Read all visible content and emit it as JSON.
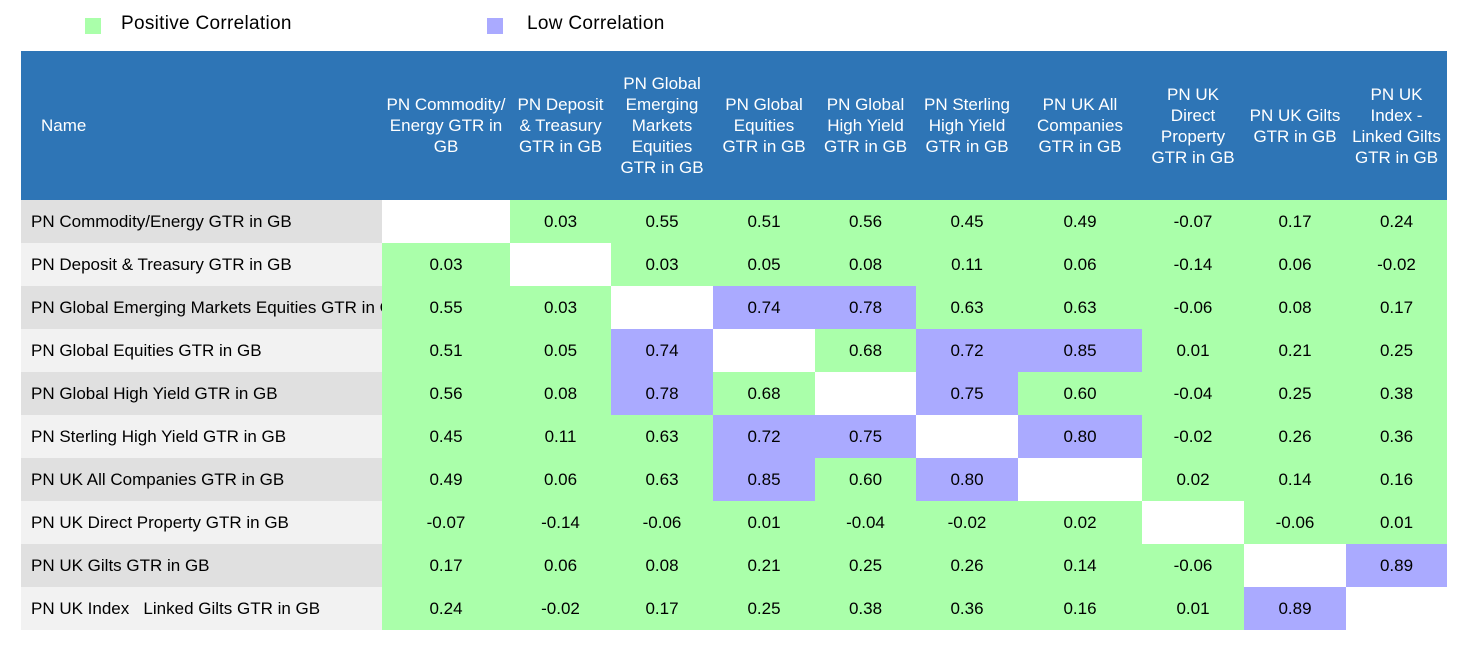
{
  "legend": [
    {
      "label": "Positive Correlation",
      "color": "#aaffaa"
    },
    {
      "label": "Low Correlation",
      "color": "#aaaaff"
    }
  ],
  "table": {
    "header_color": "#2e75b6",
    "headers": [
      "Name",
      "PN Commodity/ Energy GTR in GB",
      "PN Deposit & Treasury GTR in GB",
      "PN Global Emerging Markets Equities GTR in GB",
      "PN Global Equities GTR in GB",
      "PN Global High Yield GTR in GB",
      "PN Sterling High Yield GTR in GB",
      "PN UK All Companies GTR in GB",
      "PN UK Direct Property GTR in GB",
      "PN UK Gilts GTR in GB",
      "PN UK Index - Linked Gilts GTR in GB"
    ],
    "rows": [
      {
        "name": "PN Commodity/Energy GTR in GB",
        "cells": [
          null,
          {
            "value": "0.03",
            "color": "#aaffaa"
          },
          {
            "value": "0.55",
            "color": "#aaffaa"
          },
          {
            "value": "0.51",
            "color": "#aaffaa"
          },
          {
            "value": "0.56",
            "color": "#aaffaa"
          },
          {
            "value": "0.45",
            "color": "#aaffaa"
          },
          {
            "value": "0.49",
            "color": "#aaffaa"
          },
          {
            "value": "-0.07",
            "color": "#aaffaa"
          },
          {
            "value": "0.17",
            "color": "#aaffaa"
          },
          {
            "value": "0.24",
            "color": "#aaffaa"
          }
        ]
      },
      {
        "name": "PN Deposit & Treasury GTR in GB",
        "cells": [
          {
            "value": "0.03",
            "color": "#aaffaa"
          },
          null,
          {
            "value": "0.03",
            "color": "#aaffaa"
          },
          {
            "value": "0.05",
            "color": "#aaffaa"
          },
          {
            "value": "0.08",
            "color": "#aaffaa"
          },
          {
            "value": "0.11",
            "color": "#aaffaa"
          },
          {
            "value": "0.06",
            "color": "#aaffaa"
          },
          {
            "value": "-0.14",
            "color": "#aaffaa"
          },
          {
            "value": "0.06",
            "color": "#aaffaa"
          },
          {
            "value": "-0.02",
            "color": "#aaffaa"
          }
        ]
      },
      {
        "name": "PN Global Emerging Markets Equities GTR in GB",
        "cells": [
          {
            "value": "0.55",
            "color": "#aaffaa"
          },
          {
            "value": "0.03",
            "color": "#aaffaa"
          },
          null,
          {
            "value": "0.74",
            "color": "#aaaaff"
          },
          {
            "value": "0.78",
            "color": "#aaaaff"
          },
          {
            "value": "0.63",
            "color": "#aaffaa"
          },
          {
            "value": "0.63",
            "color": "#aaffaa"
          },
          {
            "value": "-0.06",
            "color": "#aaffaa"
          },
          {
            "value": "0.08",
            "color": "#aaffaa"
          },
          {
            "value": "0.17",
            "color": "#aaffaa"
          }
        ]
      },
      {
        "name": "PN Global Equities GTR in GB",
        "cells": [
          {
            "value": "0.51",
            "color": "#aaffaa"
          },
          {
            "value": "0.05",
            "color": "#aaffaa"
          },
          {
            "value": "0.74",
            "color": "#aaaaff"
          },
          null,
          {
            "value": "0.68",
            "color": "#aaffaa"
          },
          {
            "value": "0.72",
            "color": "#aaaaff"
          },
          {
            "value": "0.85",
            "color": "#aaaaff"
          },
          {
            "value": "0.01",
            "color": "#aaffaa"
          },
          {
            "value": "0.21",
            "color": "#aaffaa"
          },
          {
            "value": "0.25",
            "color": "#aaffaa"
          }
        ]
      },
      {
        "name": "PN Global High Yield GTR in GB",
        "cells": [
          {
            "value": "0.56",
            "color": "#aaffaa"
          },
          {
            "value": "0.08",
            "color": "#aaffaa"
          },
          {
            "value": "0.78",
            "color": "#aaaaff"
          },
          {
            "value": "0.68",
            "color": "#aaffaa"
          },
          null,
          {
            "value": "0.75",
            "color": "#aaaaff"
          },
          {
            "value": "0.60",
            "color": "#aaffaa"
          },
          {
            "value": "-0.04",
            "color": "#aaffaa"
          },
          {
            "value": "0.25",
            "color": "#aaffaa"
          },
          {
            "value": "0.38",
            "color": "#aaffaa"
          }
        ]
      },
      {
        "name": "PN Sterling High Yield GTR in GB",
        "cells": [
          {
            "value": "0.45",
            "color": "#aaffaa"
          },
          {
            "value": "0.11",
            "color": "#aaffaa"
          },
          {
            "value": "0.63",
            "color": "#aaffaa"
          },
          {
            "value": "0.72",
            "color": "#aaaaff"
          },
          {
            "value": "0.75",
            "color": "#aaaaff"
          },
          null,
          {
            "value": "0.80",
            "color": "#aaaaff"
          },
          {
            "value": "-0.02",
            "color": "#aaffaa"
          },
          {
            "value": "0.26",
            "color": "#aaffaa"
          },
          {
            "value": "0.36",
            "color": "#aaffaa"
          }
        ]
      },
      {
        "name": "PN UK All Companies GTR in GB",
        "cells": [
          {
            "value": "0.49",
            "color": "#aaffaa"
          },
          {
            "value": "0.06",
            "color": "#aaffaa"
          },
          {
            "value": "0.63",
            "color": "#aaffaa"
          },
          {
            "value": "0.85",
            "color": "#aaaaff"
          },
          {
            "value": "0.60",
            "color": "#aaffaa"
          },
          {
            "value": "0.80",
            "color": "#aaaaff"
          },
          null,
          {
            "value": "0.02",
            "color": "#aaffaa"
          },
          {
            "value": "0.14",
            "color": "#aaffaa"
          },
          {
            "value": "0.16",
            "color": "#aaffaa"
          }
        ]
      },
      {
        "name": "PN UK Direct Property GTR in GB",
        "cells": [
          {
            "value": "-0.07",
            "color": "#aaffaa"
          },
          {
            "value": "-0.14",
            "color": "#aaffaa"
          },
          {
            "value": "-0.06",
            "color": "#aaffaa"
          },
          {
            "value": "0.01",
            "color": "#aaffaa"
          },
          {
            "value": "-0.04",
            "color": "#aaffaa"
          },
          {
            "value": "-0.02",
            "color": "#aaffaa"
          },
          {
            "value": "0.02",
            "color": "#aaffaa"
          },
          null,
          {
            "value": "-0.06",
            "color": "#aaffaa"
          },
          {
            "value": "0.01",
            "color": "#aaffaa"
          }
        ]
      },
      {
        "name": "PN UK Gilts GTR in GB",
        "cells": [
          {
            "value": "0.17",
            "color": "#aaffaa"
          },
          {
            "value": "0.06",
            "color": "#aaffaa"
          },
          {
            "value": "0.08",
            "color": "#aaffaa"
          },
          {
            "value": "0.21",
            "color": "#aaffaa"
          },
          {
            "value": "0.25",
            "color": "#aaffaa"
          },
          {
            "value": "0.26",
            "color": "#aaffaa"
          },
          {
            "value": "0.14",
            "color": "#aaffaa"
          },
          {
            "value": "-0.06",
            "color": "#aaffaa"
          },
          null,
          {
            "value": "0.89",
            "color": "#aaaaff"
          }
        ]
      },
      {
        "name": "PN UK Index   Linked Gilts GTR in GB",
        "cells": [
          {
            "value": "0.24",
            "color": "#aaffaa"
          },
          {
            "value": "-0.02",
            "color": "#aaffaa"
          },
          {
            "value": "0.17",
            "color": "#aaffaa"
          },
          {
            "value": "0.25",
            "color": "#aaffaa"
          },
          {
            "value": "0.38",
            "color": "#aaffaa"
          },
          {
            "value": "0.36",
            "color": "#aaffaa"
          },
          {
            "value": "0.16",
            "color": "#aaffaa"
          },
          {
            "value": "0.01",
            "color": "#aaffaa"
          },
          {
            "value": "0.89",
            "color": "#aaaaff"
          },
          null
        ]
      }
    ]
  }
}
